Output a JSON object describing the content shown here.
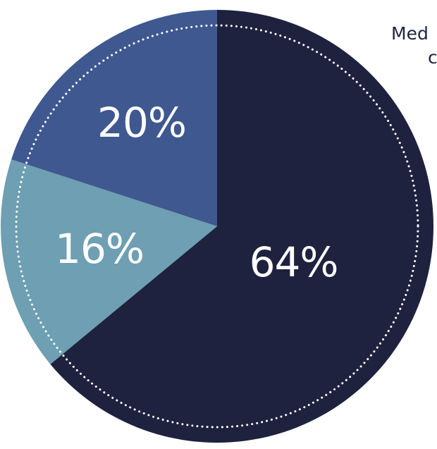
{
  "chart_data": {
    "type": "pie",
    "slices": [
      {
        "label": "64%",
        "value": 64,
        "color": "#1e223e"
      },
      {
        "label": "16%",
        "value": 16,
        "color": "#6e9fb2"
      },
      {
        "label": "20%",
        "value": 20,
        "color": "#3f5890"
      }
    ]
  },
  "side_text": {
    "line1": "Med",
    "line2": "c"
  }
}
